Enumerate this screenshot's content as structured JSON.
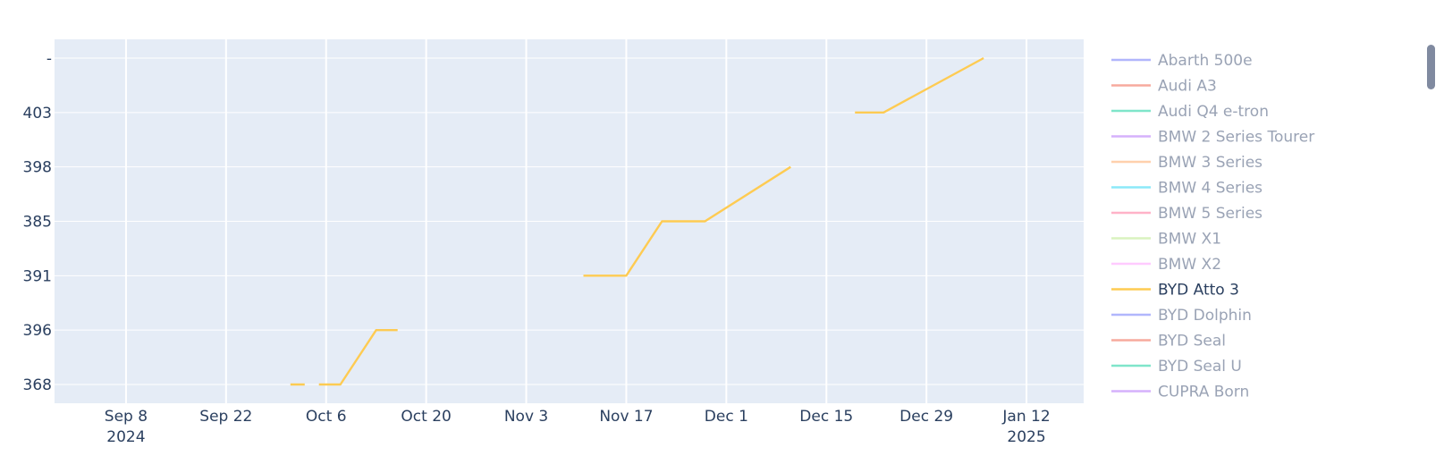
{
  "chart_data": {
    "type": "line",
    "title": "",
    "xlabel": "",
    "ylabel": "",
    "x_axis": {
      "type": "date",
      "range": [
        "2024-08-29",
        "2025-01-20"
      ],
      "ticks": [
        {
          "date": "2024-09-08",
          "label": "Sep 8",
          "sublabel": "2024"
        },
        {
          "date": "2024-09-22",
          "label": "Sep 22",
          "sublabel": ""
        },
        {
          "date": "2024-10-06",
          "label": "Oct 6",
          "sublabel": ""
        },
        {
          "date": "2024-10-20",
          "label": "Oct 20",
          "sublabel": ""
        },
        {
          "date": "2024-11-03",
          "label": "Nov 3",
          "sublabel": ""
        },
        {
          "date": "2024-11-17",
          "label": "Nov 17",
          "sublabel": ""
        },
        {
          "date": "2024-12-01",
          "label": "Dec 1",
          "sublabel": ""
        },
        {
          "date": "2024-12-15",
          "label": "Dec 15",
          "sublabel": ""
        },
        {
          "date": "2024-12-29",
          "label": "Dec 29",
          "sublabel": ""
        },
        {
          "date": "2025-01-12",
          "label": "Jan 12",
          "sublabel": "2025"
        }
      ]
    },
    "y_axis": {
      "type": "category",
      "categories": [
        "368",
        "396",
        "391",
        "385",
        "398",
        "403",
        "-"
      ]
    },
    "grid": true,
    "legend_position": "right",
    "series": [
      {
        "name": "BYD Atto 3",
        "color": "#FECB52",
        "visible": true,
        "segments": [
          [
            [
              "2024-10-01",
              "368"
            ],
            [
              "2024-10-03",
              "368"
            ]
          ],
          [
            [
              "2024-10-05",
              "368"
            ],
            [
              "2024-10-08",
              "368"
            ],
            [
              "2024-10-13",
              "396"
            ],
            [
              "2024-10-16",
              "396"
            ]
          ],
          [
            [
              "2024-11-11",
              "391"
            ],
            [
              "2024-11-17",
              "391"
            ],
            [
              "2024-11-22",
              "385"
            ],
            [
              "2024-11-28",
              "385"
            ],
            [
              "2024-12-10",
              "398"
            ]
          ],
          [
            [
              "2024-12-19",
              "403"
            ],
            [
              "2024-12-23",
              "403"
            ],
            [
              "2025-01-06",
              "-"
            ]
          ]
        ]
      }
    ]
  },
  "legend": {
    "items": [
      {
        "label": "Abarth 500e",
        "color": "#636EFA",
        "active": false
      },
      {
        "label": "Audi A3",
        "color": "#EF553B",
        "active": false
      },
      {
        "label": "Audi Q4 e-tron",
        "color": "#00CC96",
        "active": false
      },
      {
        "label": "BMW 2 Series Tourer",
        "color": "#AB63FA",
        "active": false
      },
      {
        "label": "BMW 3 Series",
        "color": "#FFA15A",
        "active": false
      },
      {
        "label": "BMW 4 Series",
        "color": "#19D3F3",
        "active": false
      },
      {
        "label": "BMW 5 Series",
        "color": "#FF6692",
        "active": false
      },
      {
        "label": "BMW X1",
        "color": "#B6E880",
        "active": false
      },
      {
        "label": "BMW X2",
        "color": "#FF97FF",
        "active": false
      },
      {
        "label": "BYD Atto 3",
        "color": "#FECB52",
        "active": true
      },
      {
        "label": "BYD Dolphin",
        "color": "#636EFA",
        "active": false
      },
      {
        "label": "BYD Seal",
        "color": "#EF553B",
        "active": false
      },
      {
        "label": "BYD Seal U",
        "color": "#00CC96",
        "active": false
      },
      {
        "label": "CUPRA Born",
        "color": "#AB63FA",
        "active": false
      }
    ]
  },
  "colors": {
    "plot_background": "#E5ECF6",
    "gridline": "#ffffff",
    "tick_text": "#2a3f5f",
    "legend_inactive_text": "#9aa3b5",
    "legend_active_text": "#2a3f5f"
  }
}
